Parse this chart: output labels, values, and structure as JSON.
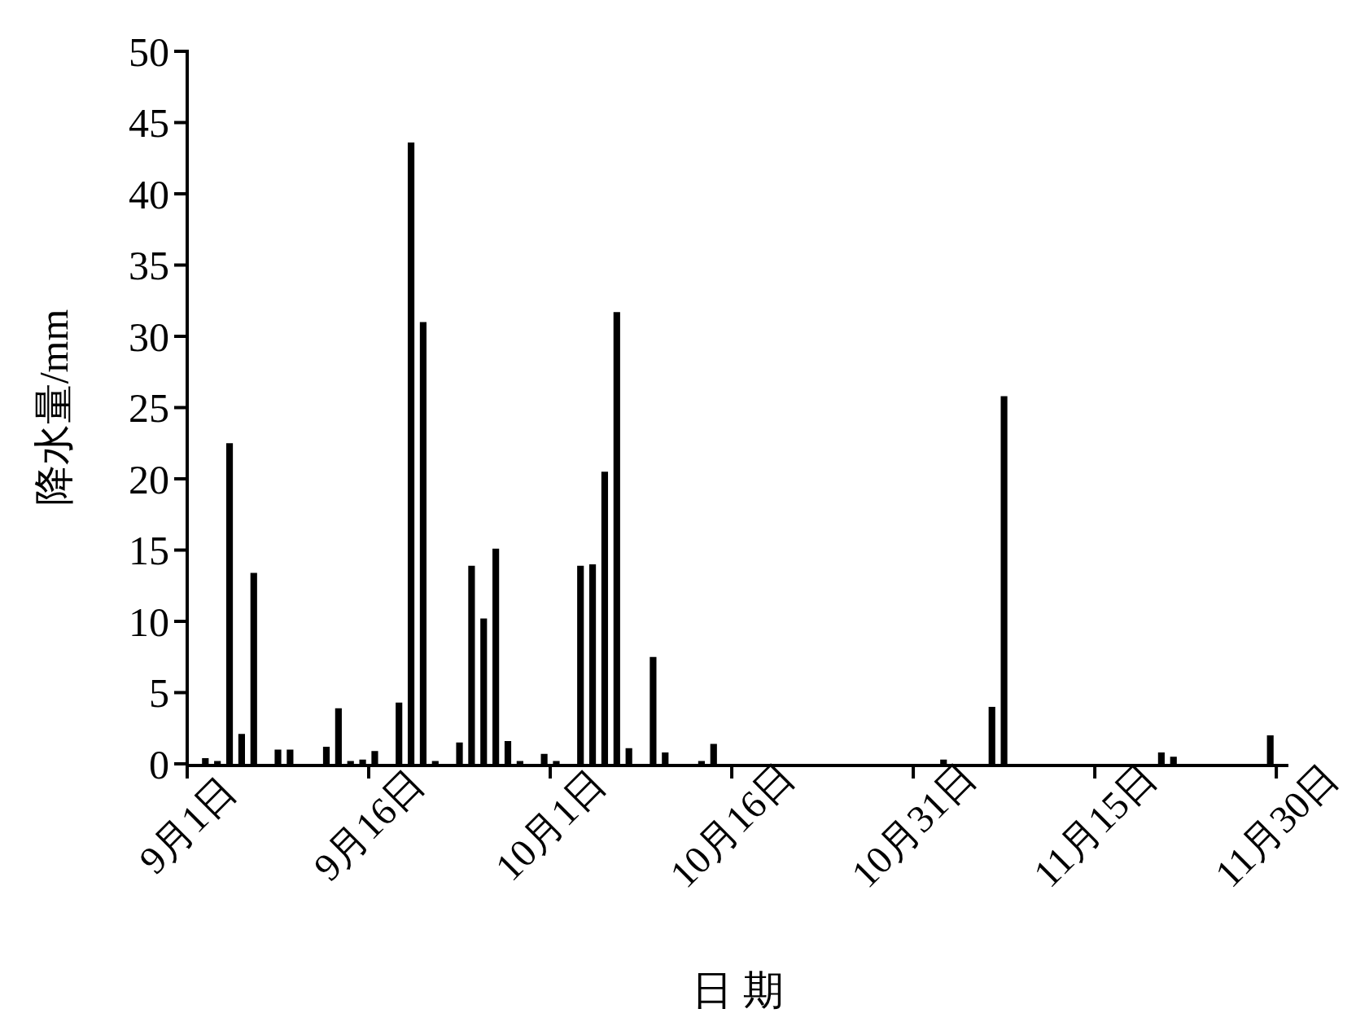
{
  "chart_data": {
    "type": "bar",
    "xlabel": "日 期",
    "ylabel": "降水量/mm",
    "color": "#000000",
    "x": [
      "--09-02T12:00",
      "--09-03T12:00",
      "--09-04T12:00",
      "--09-05T12:00",
      "--09-06T12:00",
      "--09-08T12:00",
      "--09-09T12:00",
      "--09-12T12:00",
      "--09-13T12:00",
      "--09-14T12:00",
      "--09-15T12:00",
      "--09-16T12:00",
      "--09-18T12:00",
      "--09-19T12:00",
      "--09-20T12:00",
      "--09-21T12:00",
      "--09-23T12:00",
      "--09-24T12:00",
      "--09-25T12:00",
      "--09-26T12:00",
      "--09-27T12:00",
      "--09-28T12:00",
      "--09-30T12:00",
      "--10-01T12:00",
      "--10-03T12:00",
      "--10-04T12:00",
      "--10-05T12:00",
      "--10-06T12:00",
      "--10-07T12:00",
      "--10-09T12:00",
      "--10-10T12:00",
      "--10-13T12:00",
      "--10-14T12:00",
      "--11-02T12:00",
      "--11-06T12:00",
      "--11-07T12:00",
      "--11-20T12:00",
      "--11-21T12:00",
      "--11-29T12:00"
    ],
    "values": [
      0.4,
      0.2,
      22.5,
      2.1,
      13.4,
      1.0,
      1.0,
      1.2,
      3.9,
      0.2,
      0.3,
      0.9,
      4.3,
      43.6,
      31.0,
      0.2,
      1.5,
      13.9,
      10.2,
      15.1,
      1.6,
      0.2,
      0.7,
      0.2,
      13.9,
      14.0,
      20.5,
      31.7,
      1.1,
      7.5,
      0.8,
      0.2,
      1.4,
      0.3,
      4.0,
      25.8,
      0.8,
      0.5,
      2.0
    ],
    "xlim": [
      "--09-01",
      "--12-01"
    ],
    "xticks": [
      {
        "value": "--09-01",
        "label": "9月1日"
      },
      {
        "value": "--09-16",
        "label": "9月16日"
      },
      {
        "value": "--10-01",
        "label": "10月1日"
      },
      {
        "value": "--10-16",
        "label": "10月16日"
      },
      {
        "value": "--10-31",
        "label": "10月31日"
      },
      {
        "value": "--11-15",
        "label": "11月15日"
      },
      {
        "value": "--11-30",
        "label": "11月30日"
      }
    ],
    "ylim": [
      0,
      50
    ],
    "yticks": [
      0,
      5,
      10,
      15,
      20,
      25,
      30,
      35,
      40,
      45,
      50
    ],
    "grid": false
  }
}
